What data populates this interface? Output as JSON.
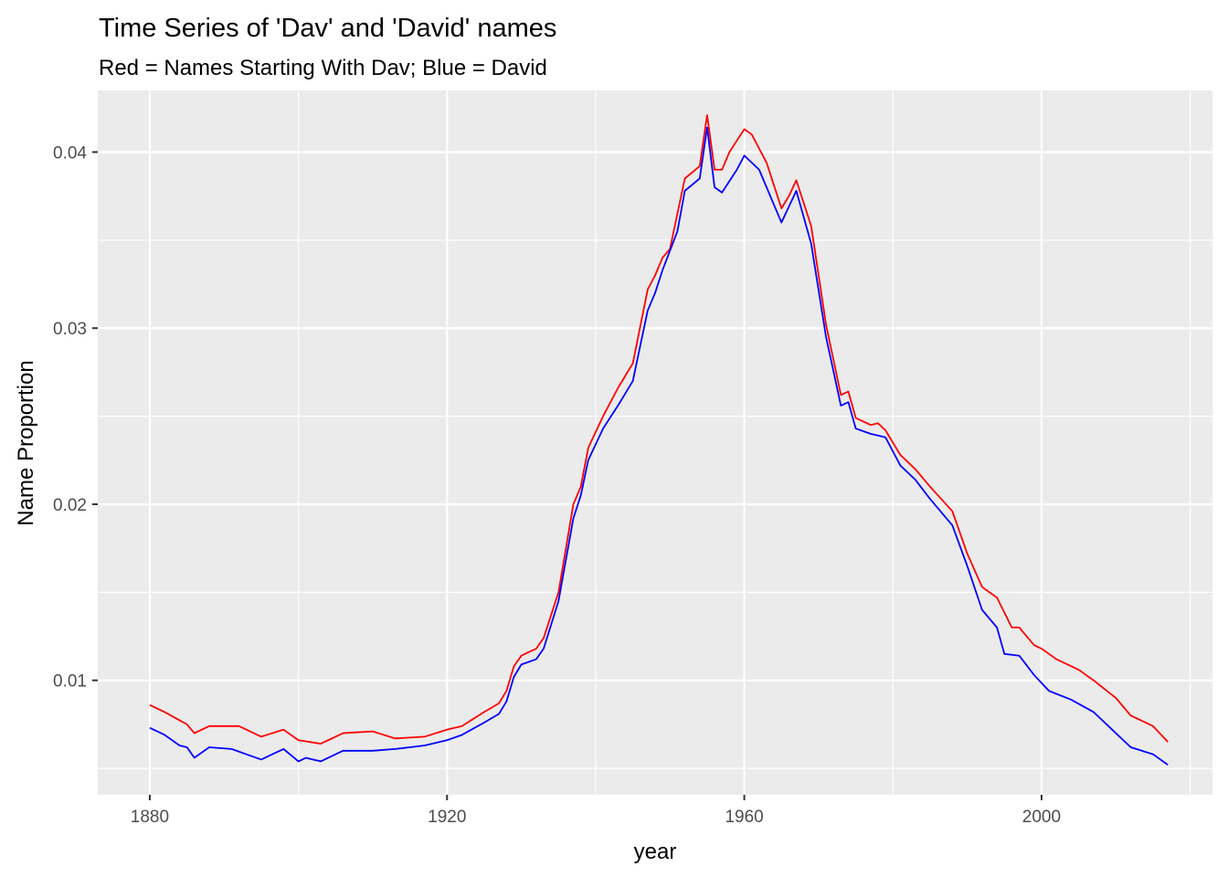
{
  "chart_data": {
    "type": "line",
    "title": "Time Series of 'Dav' and 'David' names",
    "subtitle": "Red = Names Starting With Dav; Blue = David",
    "xlabel": "year",
    "ylabel": "Name Proportion",
    "xlim": [
      1873,
      2023
    ],
    "ylim": [
      0.0035,
      0.0435
    ],
    "x_ticks": [
      1880,
      1920,
      1960,
      2000
    ],
    "y_ticks": [
      0.01,
      0.02,
      0.03,
      0.04
    ],
    "x_tick_labels": [
      "1880",
      "1920",
      "1960",
      "2000"
    ],
    "y_tick_labels": [
      "0.01",
      "0.02",
      "0.03",
      "0.04"
    ],
    "grid": true,
    "background_color": "#ebebeb",
    "grid_color": "#ffffff",
    "series": [
      {
        "color": "#ff0000",
        "keypoints": [
          [
            1880,
            0.0086
          ],
          [
            1882,
            0.0082
          ],
          [
            1885,
            0.0075
          ],
          [
            1886,
            0.007
          ],
          [
            1888,
            0.0074
          ],
          [
            1892,
            0.0074
          ],
          [
            1895,
            0.0068
          ],
          [
            1898,
            0.0072
          ],
          [
            1900,
            0.0066
          ],
          [
            1903,
            0.0064
          ],
          [
            1906,
            0.007
          ],
          [
            1910,
            0.0071
          ],
          [
            1913,
            0.0067
          ],
          [
            1917,
            0.0068
          ],
          [
            1920,
            0.0072
          ],
          [
            1922,
            0.0074
          ],
          [
            1925,
            0.0082
          ],
          [
            1927,
            0.0087
          ],
          [
            1928,
            0.0094
          ],
          [
            1929,
            0.0108
          ],
          [
            1930,
            0.0114
          ],
          [
            1932,
            0.0118
          ],
          [
            1933,
            0.0124
          ],
          [
            1935,
            0.015
          ],
          [
            1937,
            0.02
          ],
          [
            1938,
            0.021
          ],
          [
            1939,
            0.0232
          ],
          [
            1941,
            0.025
          ],
          [
            1943,
            0.0266
          ],
          [
            1945,
            0.028
          ],
          [
            1947,
            0.0322
          ],
          [
            1948,
            0.033
          ],
          [
            1949,
            0.034
          ],
          [
            1950,
            0.0345
          ],
          [
            1951,
            0.0365
          ],
          [
            1952,
            0.0385
          ],
          [
            1954,
            0.0392
          ],
          [
            1955,
            0.0421
          ],
          [
            1956,
            0.039
          ],
          [
            1957,
            0.039
          ],
          [
            1958,
            0.04
          ],
          [
            1960,
            0.0413
          ],
          [
            1961,
            0.041
          ],
          [
            1963,
            0.0394
          ],
          [
            1965,
            0.0368
          ],
          [
            1966,
            0.0375
          ],
          [
            1967,
            0.0384
          ],
          [
            1969,
            0.0358
          ],
          [
            1971,
            0.0302
          ],
          [
            1973,
            0.0262
          ],
          [
            1974,
            0.0264
          ],
          [
            1975,
            0.0249
          ],
          [
            1977,
            0.0245
          ],
          [
            1978,
            0.0246
          ],
          [
            1979,
            0.0242
          ],
          [
            1981,
            0.0228
          ],
          [
            1983,
            0.022
          ],
          [
            1985,
            0.021
          ],
          [
            1988,
            0.0196
          ],
          [
            1990,
            0.0172
          ],
          [
            1992,
            0.0153
          ],
          [
            1994,
            0.0147
          ],
          [
            1996,
            0.013
          ],
          [
            1997,
            0.013
          ],
          [
            1999,
            0.012
          ],
          [
            2000,
            0.0118
          ],
          [
            2002,
            0.0112
          ],
          [
            2005,
            0.0106
          ],
          [
            2007,
            0.01
          ],
          [
            2010,
            0.009
          ],
          [
            2012,
            0.008
          ],
          [
            2015,
            0.0074
          ],
          [
            2017,
            0.0065
          ]
        ]
      },
      {
        "color": "#0000ff",
        "keypoints": [
          [
            1880,
            0.0073
          ],
          [
            1882,
            0.0069
          ],
          [
            1884,
            0.0063
          ],
          [
            1885,
            0.0062
          ],
          [
            1886,
            0.0056
          ],
          [
            1888,
            0.0062
          ],
          [
            1891,
            0.0061
          ],
          [
            1893,
            0.0058
          ],
          [
            1895,
            0.0055
          ],
          [
            1898,
            0.0061
          ],
          [
            1900,
            0.0054
          ],
          [
            1901,
            0.0056
          ],
          [
            1903,
            0.0054
          ],
          [
            1906,
            0.006
          ],
          [
            1910,
            0.006
          ],
          [
            1913,
            0.0061
          ],
          [
            1917,
            0.0063
          ],
          [
            1920,
            0.0066
          ],
          [
            1922,
            0.0069
          ],
          [
            1925,
            0.0076
          ],
          [
            1927,
            0.0081
          ],
          [
            1928,
            0.0088
          ],
          [
            1929,
            0.0102
          ],
          [
            1930,
            0.0109
          ],
          [
            1932,
            0.0112
          ],
          [
            1933,
            0.0118
          ],
          [
            1935,
            0.0145
          ],
          [
            1937,
            0.0192
          ],
          [
            1938,
            0.0205
          ],
          [
            1939,
            0.0225
          ],
          [
            1941,
            0.0243
          ],
          [
            1943,
            0.0256
          ],
          [
            1945,
            0.027
          ],
          [
            1947,
            0.031
          ],
          [
            1948,
            0.032
          ],
          [
            1949,
            0.0333
          ],
          [
            1951,
            0.0355
          ],
          [
            1952,
            0.0378
          ],
          [
            1954,
            0.0385
          ],
          [
            1955,
            0.0414
          ],
          [
            1956,
            0.038
          ],
          [
            1957,
            0.0377
          ],
          [
            1959,
            0.039
          ],
          [
            1960,
            0.0398
          ],
          [
            1962,
            0.039
          ],
          [
            1965,
            0.036
          ],
          [
            1967,
            0.0378
          ],
          [
            1969,
            0.0348
          ],
          [
            1971,
            0.0295
          ],
          [
            1973,
            0.0256
          ],
          [
            1974,
            0.0258
          ],
          [
            1975,
            0.0243
          ],
          [
            1977,
            0.024
          ],
          [
            1979,
            0.0238
          ],
          [
            1981,
            0.0222
          ],
          [
            1983,
            0.0214
          ],
          [
            1985,
            0.0203
          ],
          [
            1988,
            0.0188
          ],
          [
            1990,
            0.0165
          ],
          [
            1992,
            0.014
          ],
          [
            1994,
            0.013
          ],
          [
            1995,
            0.0115
          ],
          [
            1997,
            0.0114
          ],
          [
            1999,
            0.0103
          ],
          [
            2001,
            0.0094
          ],
          [
            2004,
            0.0089
          ],
          [
            2007,
            0.0082
          ],
          [
            2009,
            0.0074
          ],
          [
            2012,
            0.0062
          ],
          [
            2015,
            0.0058
          ],
          [
            2017,
            0.0052
          ]
        ]
      }
    ]
  }
}
